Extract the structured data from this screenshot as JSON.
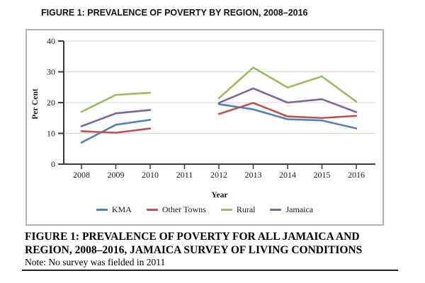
{
  "page": {
    "top_title": "FIGURE 1: PREVALENCE OF POVERTY BY REGION, 2008–2016",
    "caption_line1": "FIGURE 1: PREVALENCE OF POVERTY FOR ALL JAMAICA AND",
    "caption_line2": "REGION, 2008–2016, JAMAICA SURVEY OF LIVING CONDITIONS",
    "note": "Note: No survey was fielded in 2011"
  },
  "chart_data": {
    "type": "line",
    "title": "FIGURE 1: PREVALENCE OF POVERTY BY REGION, 2008–2016",
    "xlabel": "Year",
    "ylabel": "Per Cent",
    "x": [
      2008,
      2009,
      2010,
      2011,
      2012,
      2013,
      2014,
      2015,
      2016
    ],
    "x_tick_labels": [
      "2008",
      "2009",
      "2010",
      "2011",
      "2012",
      "2013",
      "2014",
      "2015",
      "2016"
    ],
    "ylim": [
      0,
      40
    ],
    "yticks": [
      0,
      10,
      20,
      30,
      40
    ],
    "grid": "horizontal",
    "legend_position": "bottom",
    "gap_note": "No data plotted for 2011 (no survey fielded)",
    "series": [
      {
        "name": "KMA",
        "color": "#4F81BD",
        "values": [
          7.0,
          12.8,
          14.4,
          null,
          19.5,
          17.8,
          14.6,
          14.2,
          11.6
        ]
      },
      {
        "name": "Other Towns",
        "color": "#C0504D",
        "values": [
          10.7,
          10.2,
          11.6,
          null,
          16.3,
          19.9,
          15.5,
          15.0,
          15.7
        ]
      },
      {
        "name": "Rural",
        "color": "#9BBB59",
        "values": [
          17.0,
          22.5,
          23.2,
          null,
          21.4,
          31.4,
          24.9,
          28.5,
          20.3
        ]
      },
      {
        "name": "Jamaica",
        "color": "#8064A2",
        "values": [
          12.3,
          16.5,
          17.6,
          null,
          19.9,
          24.6,
          20.0,
          21.1,
          16.9
        ]
      }
    ],
    "style": {
      "gridline_color": "#d9d9d9",
      "axis_color": "#3a3a3a",
      "tick_label_color": "#1a1a1a"
    }
  }
}
